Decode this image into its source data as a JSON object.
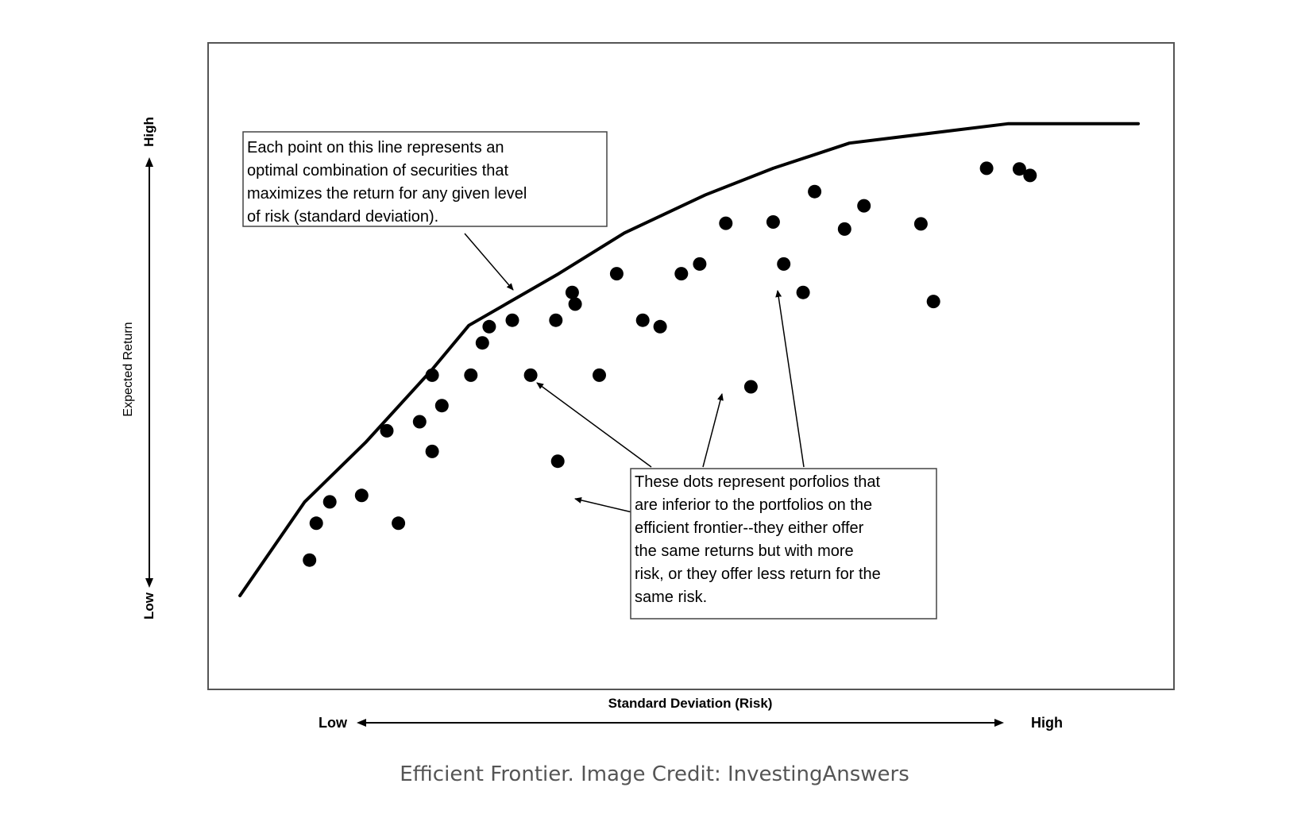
{
  "chart_data": {
    "type": "scatter",
    "title": "",
    "xlabel": "Standard Deviation (Risk)",
    "ylabel": "Expected Return",
    "xlim": [
      0,
      100
    ],
    "ylim": [
      0,
      100
    ],
    "x_axis": {
      "low_label": "Low",
      "high_label": "High"
    },
    "y_axis": {
      "low_label": "Low",
      "high_label": "High"
    },
    "grid": false,
    "series": [
      {
        "kind": "line",
        "x": [
          3.3,
          10.0,
          16.3,
          23.2,
          27.0,
          36.3,
          43.1,
          51.5,
          58.5,
          66.4,
          82.8,
          96.3
        ],
        "y": [
          14.5,
          29.0,
          38.2,
          49.5,
          56.3,
          64.3,
          70.6,
          76.5,
          80.6,
          84.5,
          87.5,
          87.5
        ]
      },
      {
        "kind": "scatter",
        "x": [
          10.5,
          11.2,
          12.6,
          15.9,
          19.7,
          18.5,
          21.9,
          23.2,
          23.2,
          24.2,
          27.2,
          28.4,
          29.1,
          31.5,
          33.4,
          36.0,
          36.2,
          37.7,
          38.0,
          40.5,
          42.3,
          45.0,
          46.8,
          49.0,
          50.9,
          53.6,
          56.2,
          58.5,
          59.6,
          61.6,
          62.8,
          65.9,
          67.9,
          75.1,
          73.8,
          80.6,
          85.1,
          84.0
        ],
        "y": [
          20.0,
          25.7,
          29.0,
          30.0,
          25.7,
          40.0,
          41.4,
          36.8,
          48.6,
          43.9,
          48.6,
          53.6,
          56.1,
          57.1,
          48.6,
          57.1,
          35.3,
          61.4,
          59.6,
          48.6,
          64.3,
          57.1,
          56.1,
          64.3,
          65.8,
          72.1,
          46.8,
          72.3,
          65.8,
          61.4,
          77.0,
          71.2,
          74.8,
          60.0,
          72.0,
          80.6,
          79.5,
          80.5
        ]
      }
    ],
    "annotations": [
      "Each point on this line represents an optimal combination of securities that maximizes the return for any given level of risk (standard deviation).",
      "These dots represent porfolios that are inferior to the portfolios on the efficient frontier--they either offer the same returns but with more risk, or they offer less return for the same risk."
    ]
  },
  "annotation_boxes": {
    "frontier_note": [
      "Each point on this line represents an",
      "optimal combination of securities that",
      "maximizes the return for any given level",
      "of risk (standard deviation)."
    ],
    "dots_note": [
      "These dots represent porfolios that",
      "are inferior to the portfolios on the",
      "efficient frontier--they either offer",
      "the same returns but with more",
      "risk, or they offer less return for the",
      "same risk."
    ]
  },
  "caption": "Efficient Frontier. Image Credit: InvestingAnswers"
}
